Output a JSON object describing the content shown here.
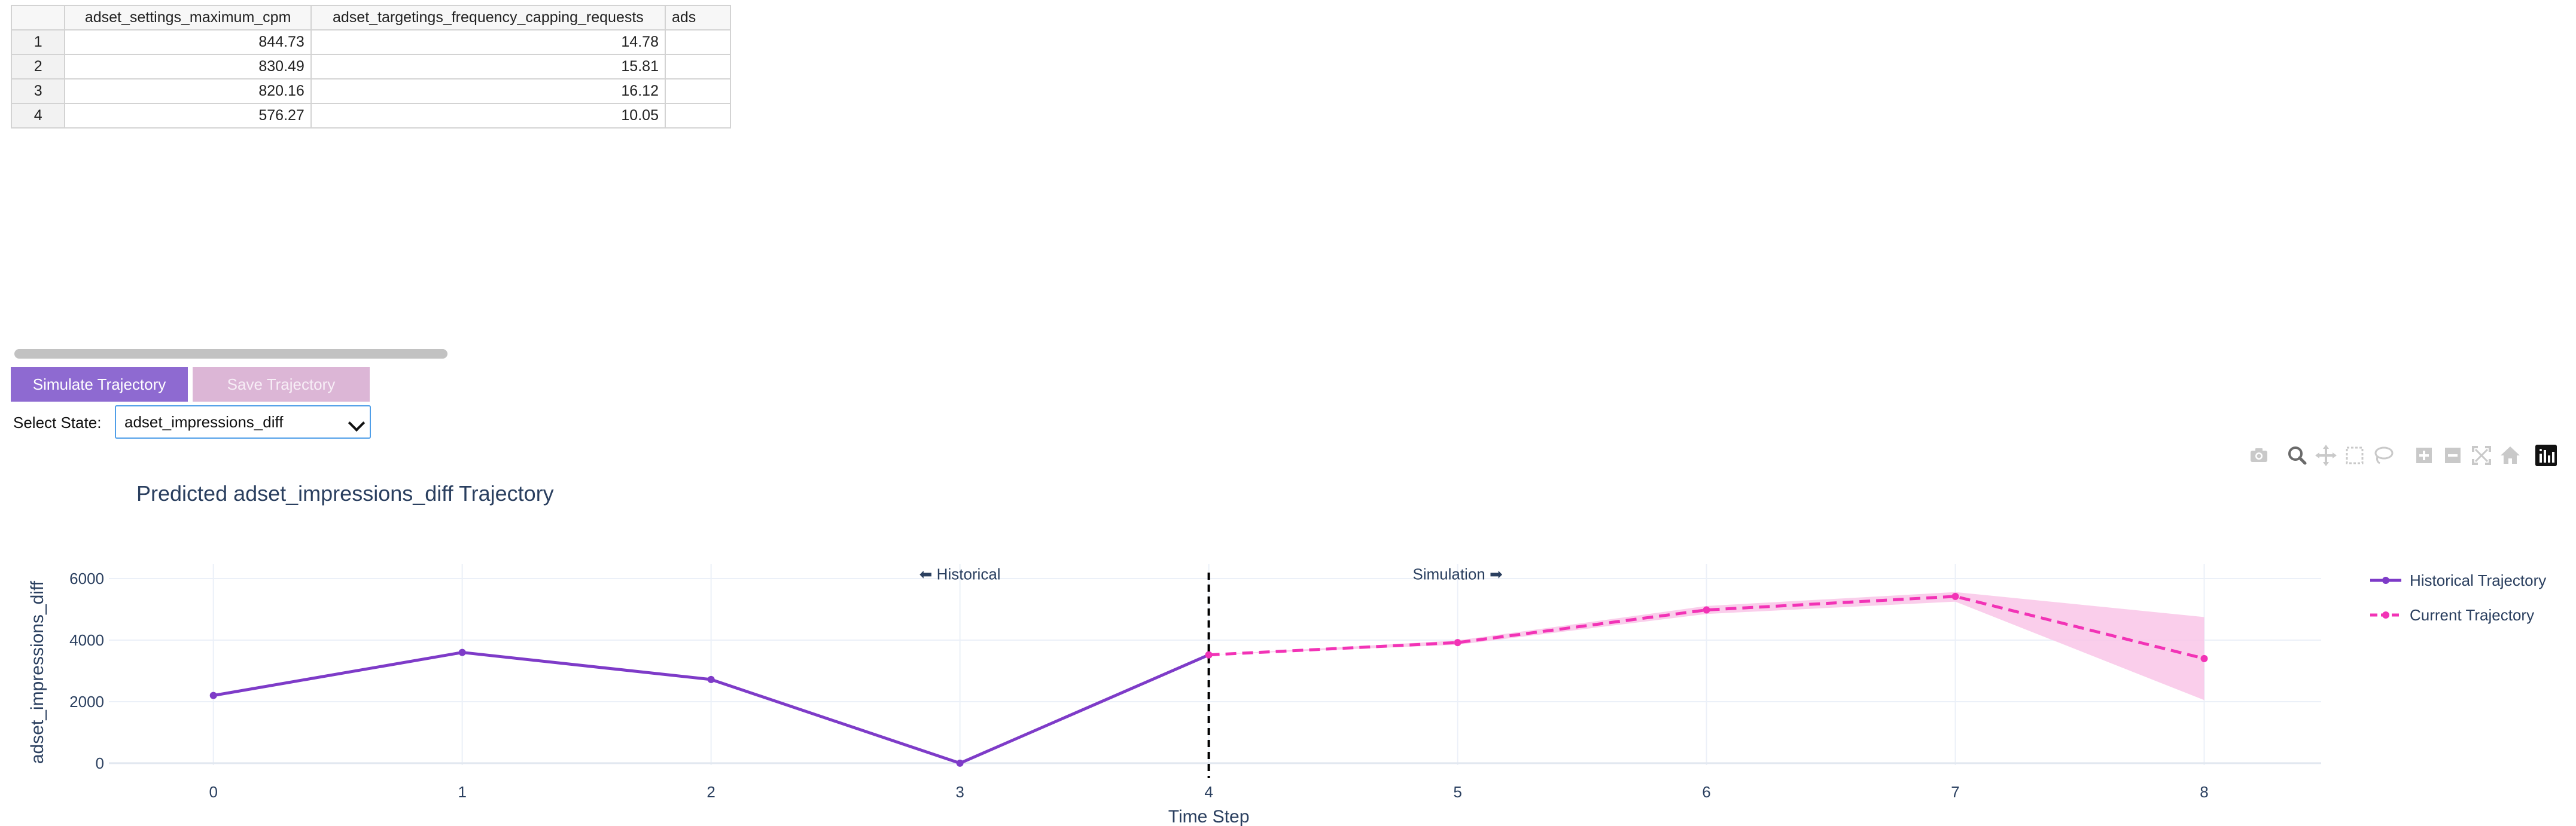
{
  "table": {
    "columns": [
      "",
      "adset_settings_maximum_cpm",
      "adset_targetings_frequency_capping_requests",
      "ads"
    ],
    "rows": [
      [
        "1",
        "844.73",
        "14.78",
        ""
      ],
      [
        "2",
        "830.49",
        "15.81",
        ""
      ],
      [
        "3",
        "820.16",
        "16.12",
        ""
      ],
      [
        "4",
        "576.27",
        "10.05",
        ""
      ]
    ]
  },
  "controls": {
    "simulate_label": "Simulate Trajectory",
    "save_label": "Save Trajectory",
    "select_state_label": "Select State:",
    "selected_state": "adset_impressions_diff"
  },
  "modebar": {
    "icons": [
      "camera-icon",
      "zoom-icon",
      "pan-icon",
      "box-select-icon",
      "lasso-icon",
      "zoom-in-icon",
      "zoom-out-icon",
      "autoscale-icon",
      "reset-axes-icon",
      "plotly-logo-icon"
    ]
  },
  "colors": {
    "historical": "#7e3bc8",
    "current": "#f233b6",
    "band": "#f9c6e8",
    "simulate_button": "#8e6ad1",
    "save_button": "#dcb6d6"
  },
  "chart_data": {
    "type": "line",
    "title": "Predicted adset_impressions_diff Trajectory",
    "xlabel": "Time Step",
    "ylabel": "adset_impressions_diff",
    "xlim": [
      -0.42,
      8.47
    ],
    "ylim": [
      -60,
      6350
    ],
    "x_ticks": [
      0,
      1,
      2,
      3,
      4,
      5,
      6,
      7,
      8
    ],
    "y_ticks": [
      0,
      2000,
      4000,
      6000
    ],
    "grid": true,
    "legend_position": "right",
    "annotations": [
      {
        "text": "⬅ Historical",
        "x": 3.0,
        "y": 6150
      },
      {
        "text": "Simulation ➡",
        "x": 5.0,
        "y": 6150
      }
    ],
    "divider_x": 4,
    "series": [
      {
        "name": "Historical Trajectory",
        "style": "solid",
        "x": [
          0,
          1,
          2,
          3,
          4
        ],
        "y": [
          2200,
          3600,
          2720,
          0,
          3520
        ]
      },
      {
        "name": "Current Trajectory",
        "style": "dashed",
        "x": [
          4,
          5,
          6,
          7,
          8
        ],
        "y": [
          3520,
          3920,
          4980,
          5420,
          3400
        ],
        "lower": [
          3520,
          3850,
          4850,
          5250,
          2050
        ],
        "upper": [
          3520,
          3990,
          5110,
          5560,
          4750
        ]
      }
    ]
  }
}
